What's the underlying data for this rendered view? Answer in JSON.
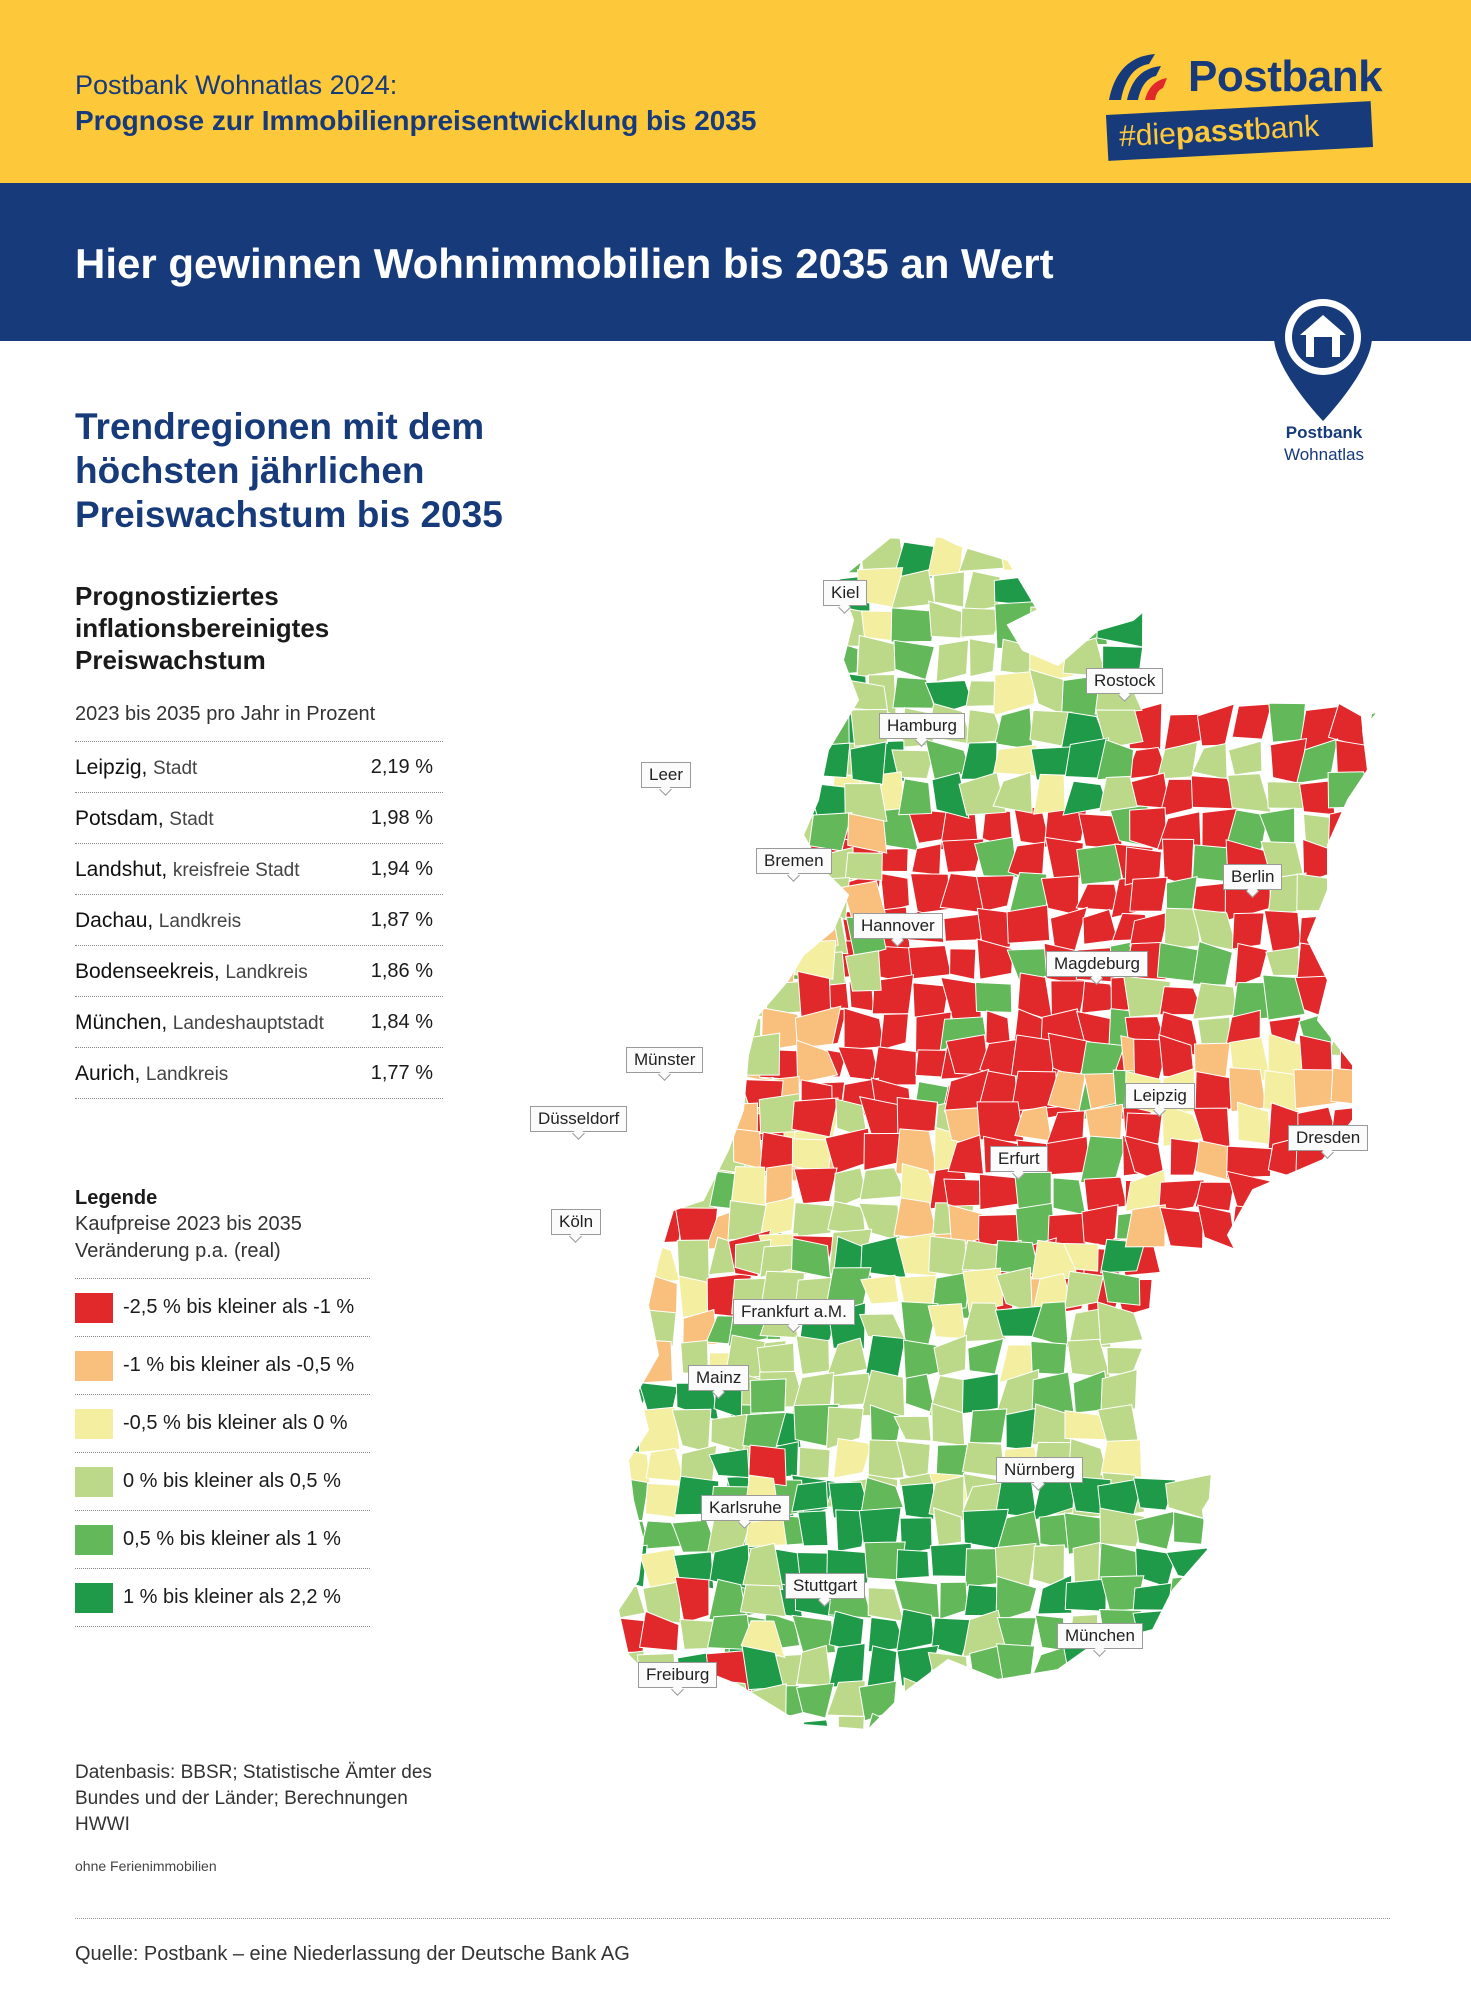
{
  "header": {
    "pre_title": "Postbank Wohnatlas 2024:",
    "pre_subtitle": "Prognose zur Immobilienpreisentwicklung bis 2035",
    "logo_text": "Postbank",
    "logo_tag_a": "#die",
    "logo_tag_b": "passt",
    "logo_tag_c": "bank",
    "headline": "Hier gewinnen Wohnimmobilien bis 2035 an Wert",
    "pin_label_1": "Postbank",
    "pin_label_2": "Wohnatlas"
  },
  "section": {
    "title": "Trendregionen mit dem höchsten jährlichen Preiswachstum bis 2035",
    "subtitle": "Prognostiziertes inflationsbereinigtes Preiswachstum",
    "unit_line": "2023 bis 2035 pro Jahr in Prozent"
  },
  "ranking": [
    {
      "name": "Leipzig,",
      "type": "Stadt",
      "value": "2,19 %"
    },
    {
      "name": "Potsdam,",
      "type": "Stadt",
      "value": "1,98 %"
    },
    {
      "name": "Landshut,",
      "type": "kreisfreie Stadt",
      "value": "1,94 %"
    },
    {
      "name": "Dachau,",
      "type": "Landkreis",
      "value": "1,87 %"
    },
    {
      "name": "Bodenseekreis,",
      "type": "Landkreis",
      "value": "1,86 %"
    },
    {
      "name": "München,",
      "type": "Landeshauptstadt",
      "value": "1,84 %"
    },
    {
      "name": "Aurich,",
      "type": "Landkreis",
      "value": "1,77 %"
    }
  ],
  "legend": {
    "title": "Legende",
    "sub_1": "Kaufpreise 2023 bis 2035",
    "sub_2": "Veränderung p.a. (real)",
    "items": [
      {
        "label": "-2,5 % bis kleiner als -1 %",
        "color": "#e1282a"
      },
      {
        "label": "-1 % bis kleiner als -0,5 %",
        "color": "#f9bf7c"
      },
      {
        "label": "-0,5 % bis kleiner als 0 %",
        "color": "#f3eea0"
      },
      {
        "label": "0 % bis kleiner als 0,5 %",
        "color": "#bcd98a"
      },
      {
        "label": "0,5 % bis kleiner als 1 %",
        "color": "#63b85a"
      },
      {
        "label": "1 % bis kleiner als 2,2 %",
        "color": "#1f9a48"
      }
    ]
  },
  "sources": {
    "data_basis": "Datenbasis: BBSR; Statistische Ämter des Bundes und der Länder; Berechnungen HWWI",
    "note": "ohne Ferienimmobilien",
    "footer": "Quelle: Postbank – eine Niederlassung der Deutsche Bank AG"
  },
  "cities": {
    "kiel": "Kiel",
    "rostock": "Rostock",
    "hamburg": "Hamburg",
    "leer": "Leer",
    "bremen": "Bremen",
    "berlin": "Berlin",
    "hannover": "Hannover",
    "magdeburg": "Magdeburg",
    "muenster": "Münster",
    "leipzig": "Leipzig",
    "duesseldorf": "Düsseldorf",
    "dresden": "Dresden",
    "erfurt": "Erfurt",
    "koeln": "Köln",
    "frankfurt": "Frankfurt a.M.",
    "mainz": "Mainz",
    "nuernberg": "Nürnberg",
    "karlsruhe": "Karlsruhe",
    "stuttgart": "Stuttgart",
    "muenchen": "München",
    "freiburg": "Freiburg"
  }
}
